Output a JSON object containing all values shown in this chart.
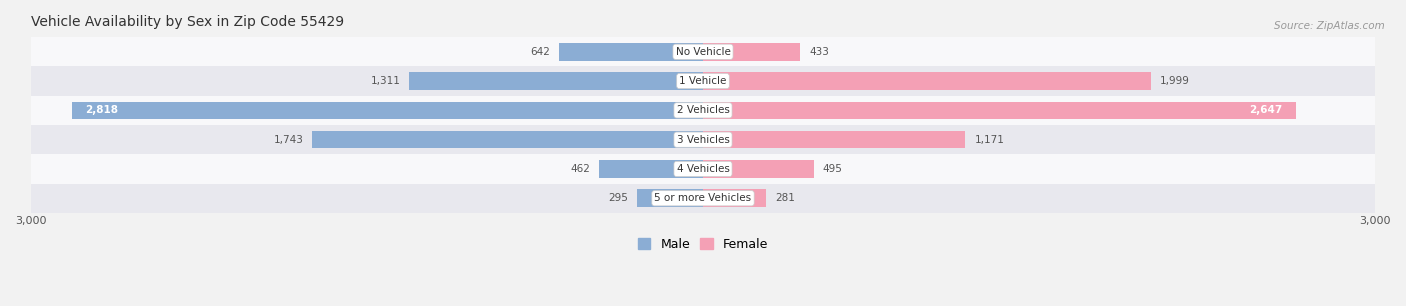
{
  "title": "Vehicle Availability by Sex in Zip Code 55429",
  "source": "Source: ZipAtlas.com",
  "categories": [
    "No Vehicle",
    "1 Vehicle",
    "2 Vehicles",
    "3 Vehicles",
    "4 Vehicles",
    "5 or more Vehicles"
  ],
  "male_values": [
    642,
    1311,
    2818,
    1743,
    462,
    295
  ],
  "female_values": [
    433,
    1999,
    2647,
    1171,
    495,
    281
  ],
  "male_color": "#8BADD4",
  "female_color": "#F4A0B5",
  "background_color": "#f2f2f2",
  "xlim": 3000,
  "legend_male": "Male",
  "legend_female": "Female",
  "bar_height": 0.6,
  "row_bg_colors": [
    "#f8f8fa",
    "#e8e8ee"
  ]
}
